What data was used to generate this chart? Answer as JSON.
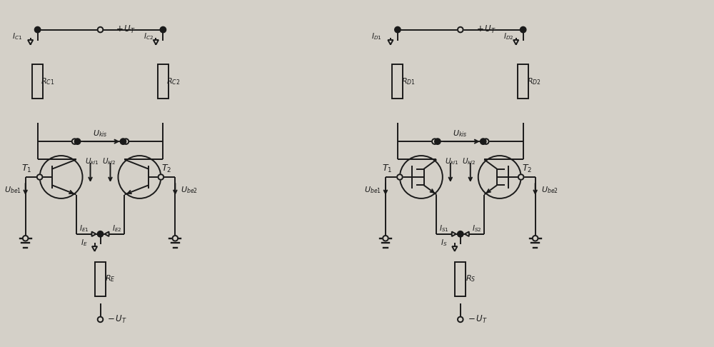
{
  "bg_color": "#d4d0c8",
  "line_color": "#1a1a1a",
  "text_color": "#1a1a1a",
  "fig_width": 10.0,
  "fig_height": 4.86
}
